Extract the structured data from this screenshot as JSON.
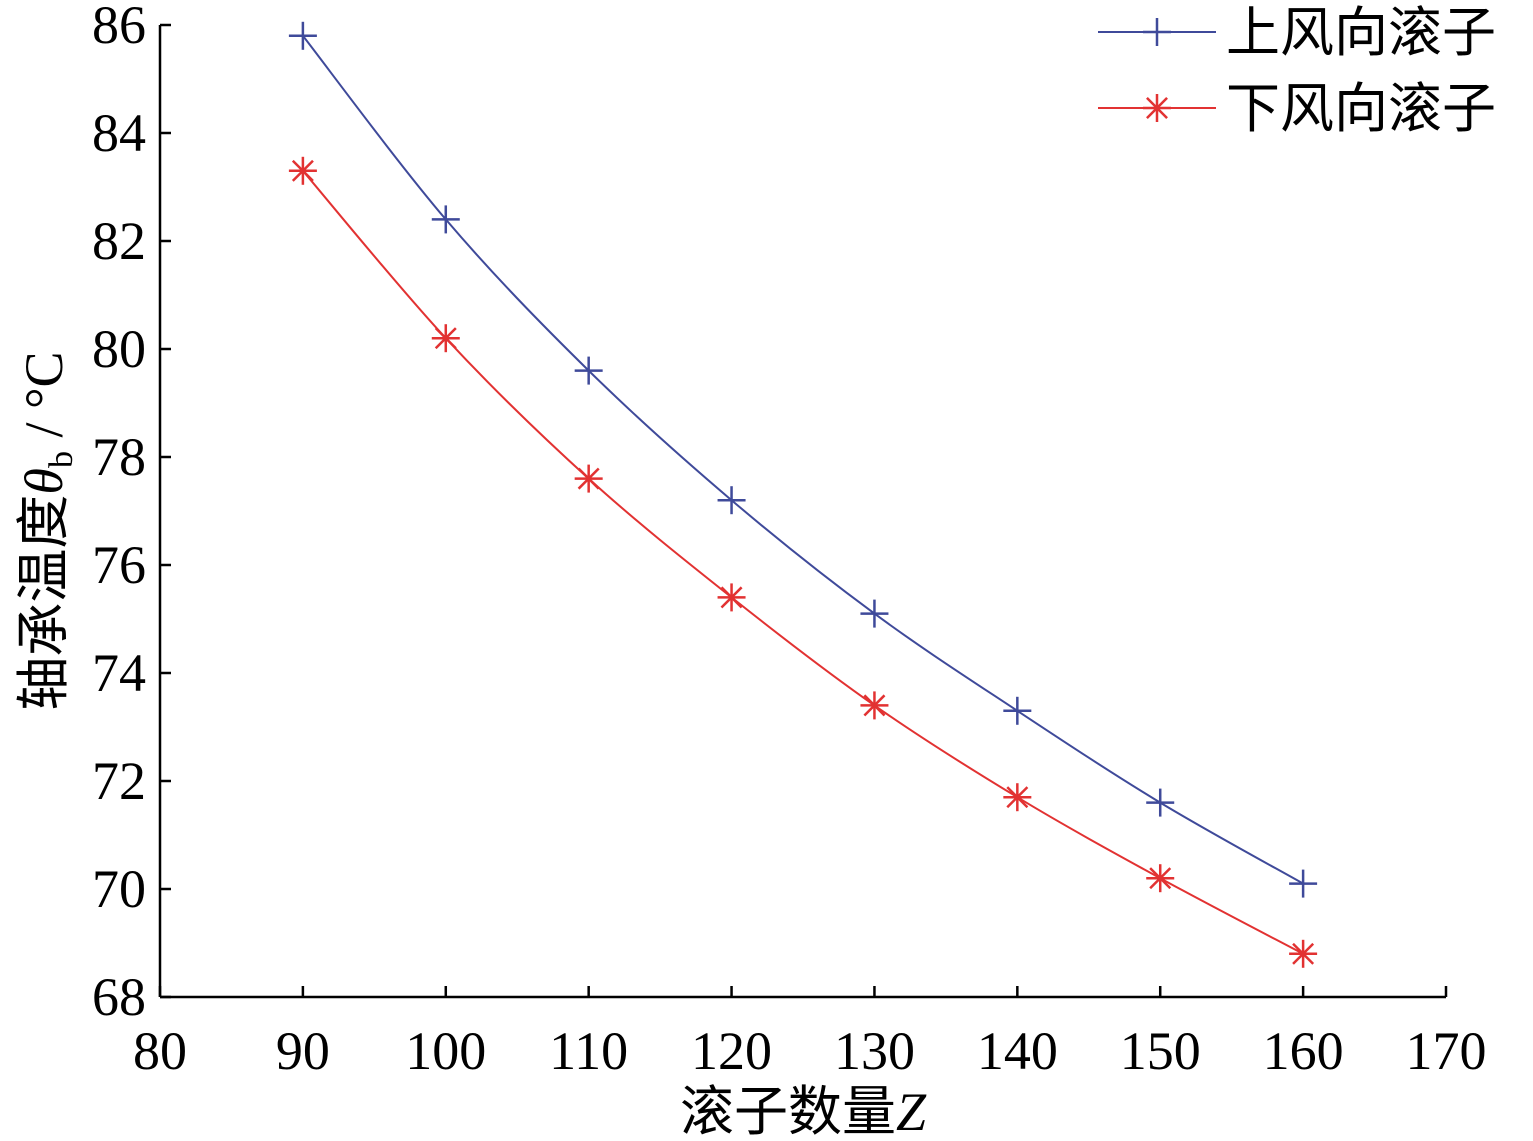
{
  "chart_data": {
    "type": "line",
    "xlabel_text": "滚子数量",
    "xlabel_var": "Z",
    "ylabel_text": "轴承温度",
    "ylabel_var": "θ",
    "ylabel_sub": "b",
    "ylabel_unit": " / °C",
    "xlim": [
      80,
      170
    ],
    "ylim": [
      68,
      86
    ],
    "xticks": [
      80,
      90,
      100,
      110,
      120,
      130,
      140,
      150,
      160,
      170
    ],
    "yticks": [
      68,
      70,
      72,
      74,
      76,
      78,
      80,
      82,
      84,
      86
    ],
    "grid": false,
    "legend_position": "top-right",
    "x": [
      90,
      100,
      110,
      120,
      130,
      140,
      150,
      160
    ],
    "series": [
      {
        "name": "上风向滚子",
        "color": "#3f4a9a",
        "marker": "plus",
        "values": [
          85.8,
          82.4,
          79.6,
          77.2,
          75.1,
          73.3,
          71.6,
          70.1
        ]
      },
      {
        "name": "下风向滚子",
        "color": "#e23232",
        "marker": "asterisk",
        "values": [
          83.3,
          80.2,
          77.6,
          75.4,
          73.4,
          71.7,
          70.2,
          68.8
        ]
      }
    ]
  }
}
